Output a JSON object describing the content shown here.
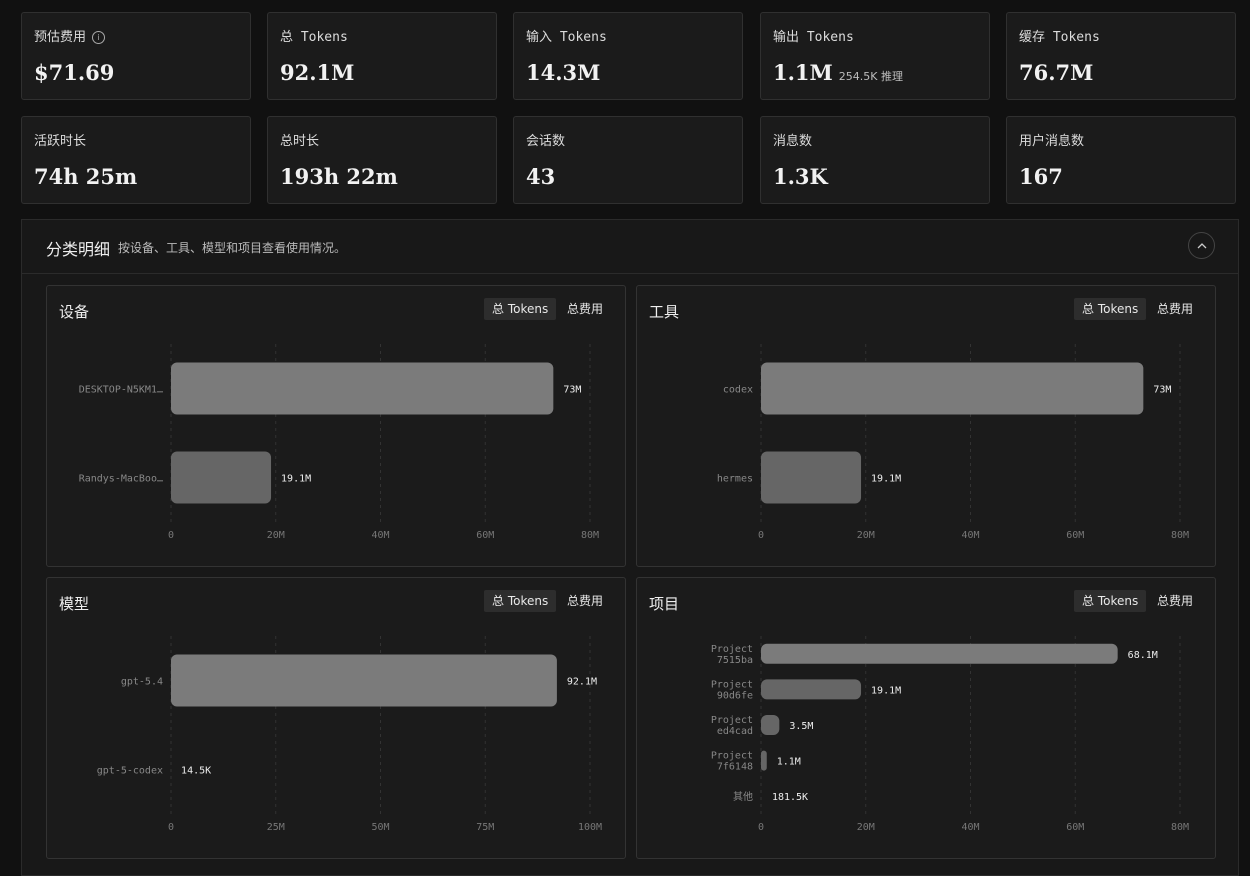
{
  "stats": [
    {
      "label": "预估费用",
      "value": "$71.69",
      "info": true
    },
    {
      "label": "总 Tokens",
      "value": "92.1M"
    },
    {
      "label": "输入 Tokens",
      "value": "14.3M"
    },
    {
      "label": "输出 Tokens",
      "value": "1.1M",
      "sub": "254.5K 推理"
    },
    {
      "label": "缓存 Tokens",
      "value": "76.7M"
    },
    {
      "label": "活跃时长",
      "value": "74h 25m"
    },
    {
      "label": "总时长",
      "value": "193h 22m"
    },
    {
      "label": "会话数",
      "value": "43"
    },
    {
      "label": "消息数",
      "value": "1.3K"
    },
    {
      "label": "用户消息数",
      "value": "167"
    }
  ],
  "breakdown": {
    "title": "分类明细",
    "description": "按设备、工具、模型和项目查看使用情况。"
  },
  "toggle": {
    "tokens": "总 Tokens",
    "cost": "总费用"
  },
  "chart_data": [
    {
      "type": "bar",
      "title": "设备",
      "categories": [
        "DESKTOP-N5KM1…",
        "Randys-MacBoo…"
      ],
      "values": [
        73000000,
        19100000
      ],
      "value_labels": [
        "73M",
        "19.1M"
      ],
      "xticks": [
        0,
        20000000,
        40000000,
        60000000,
        80000000
      ],
      "xtick_labels": [
        "0",
        "20M",
        "40M",
        "60M",
        "80M"
      ],
      "xlim": [
        0,
        80000000
      ]
    },
    {
      "type": "bar",
      "title": "工具",
      "categories": [
        "codex",
        "hermes"
      ],
      "values": [
        73000000,
        19100000
      ],
      "value_labels": [
        "73M",
        "19.1M"
      ],
      "xticks": [
        0,
        20000000,
        40000000,
        60000000,
        80000000
      ],
      "xtick_labels": [
        "0",
        "20M",
        "40M",
        "60M",
        "80M"
      ],
      "xlim": [
        0,
        80000000
      ]
    },
    {
      "type": "bar",
      "title": "模型",
      "categories": [
        "gpt-5.4",
        "gpt-5-codex"
      ],
      "values": [
        92100000,
        14500
      ],
      "value_labels": [
        "92.1M",
        "14.5K"
      ],
      "xticks": [
        0,
        25000000,
        50000000,
        75000000,
        100000000
      ],
      "xtick_labels": [
        "0",
        "25M",
        "50M",
        "75M",
        "100M"
      ],
      "xlim": [
        0,
        100000000
      ]
    },
    {
      "type": "bar",
      "title": "项目",
      "categories": [
        [
          "Project",
          "7515ba"
        ],
        [
          "Project",
          "90d6fe"
        ],
        [
          "Project",
          "ed4cad"
        ],
        [
          "Project",
          "7f6148"
        ],
        [
          "其他"
        ]
      ],
      "values": [
        68100000,
        19100000,
        3500000,
        1100000,
        181500
      ],
      "value_labels": [
        "68.1M",
        "19.1M",
        "3.5M",
        "1.1M",
        "181.5K"
      ],
      "xticks": [
        0,
        20000000,
        40000000,
        60000000,
        80000000
      ],
      "xtick_labels": [
        "0",
        "20M",
        "40M",
        "60M",
        "80M"
      ],
      "xlim": [
        0,
        80000000
      ]
    }
  ]
}
